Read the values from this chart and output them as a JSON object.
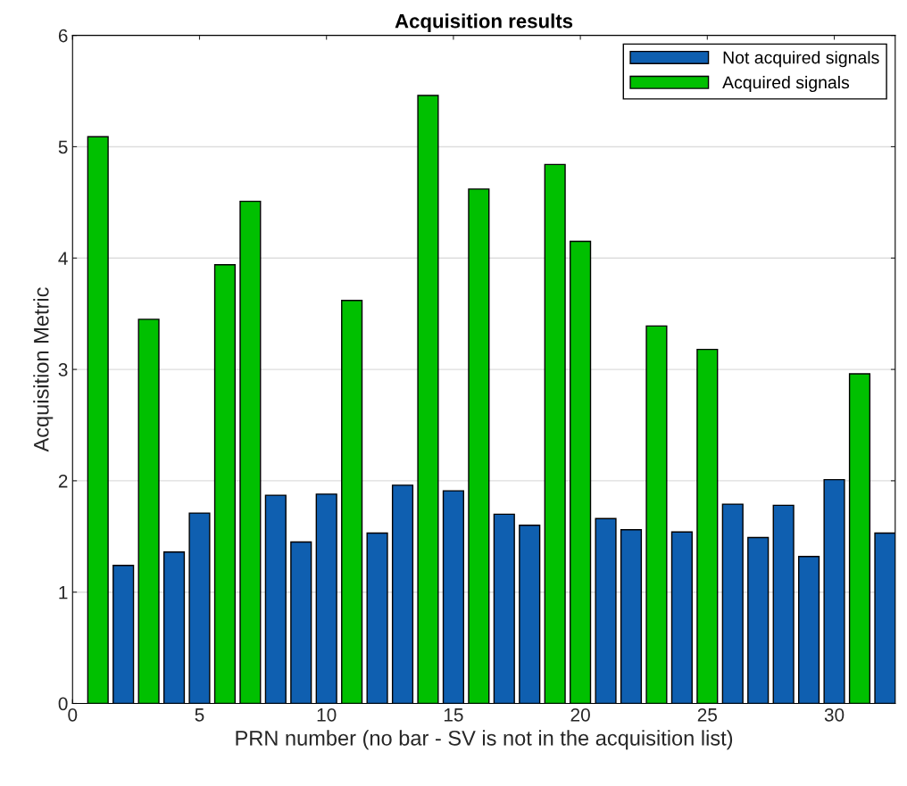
{
  "chart_data": {
    "type": "bar",
    "title": "Acquisition results",
    "xlabel": "PRN number (no bar - SV is not in the acquisition list)",
    "ylabel": "Acquisition Metric",
    "x": [
      1,
      2,
      3,
      4,
      5,
      6,
      7,
      8,
      9,
      10,
      11,
      12,
      13,
      14,
      15,
      16,
      17,
      18,
      19,
      20,
      21,
      22,
      23,
      24,
      25,
      26,
      27,
      28,
      29,
      30,
      31,
      32
    ],
    "series": [
      {
        "name": "Not acquired signals",
        "color": "#0f5fb0",
        "values": [
          null,
          1.24,
          null,
          1.36,
          1.71,
          null,
          null,
          1.87,
          1.45,
          1.88,
          null,
          1.53,
          1.96,
          null,
          1.91,
          null,
          1.7,
          1.6,
          null,
          null,
          1.66,
          1.56,
          null,
          1.54,
          null,
          1.79,
          1.49,
          1.78,
          1.32,
          2.01,
          null,
          1.53
        ]
      },
      {
        "name": "Acquired signals",
        "color": "#00c000",
        "values": [
          5.09,
          null,
          3.45,
          null,
          null,
          3.94,
          4.51,
          null,
          null,
          null,
          3.62,
          null,
          null,
          5.46,
          null,
          4.62,
          null,
          null,
          4.84,
          4.15,
          null,
          null,
          3.39,
          null,
          3.18,
          null,
          null,
          null,
          null,
          null,
          2.96,
          null
        ]
      }
    ],
    "xlim": [
      0,
      32.4
    ],
    "xticks": [
      0,
      5,
      10,
      15,
      20,
      25,
      30
    ],
    "ylim": [
      0,
      6
    ],
    "yticks": [
      0,
      1,
      2,
      3,
      4,
      5,
      6
    ],
    "grid": "y",
    "legend": "top right"
  }
}
